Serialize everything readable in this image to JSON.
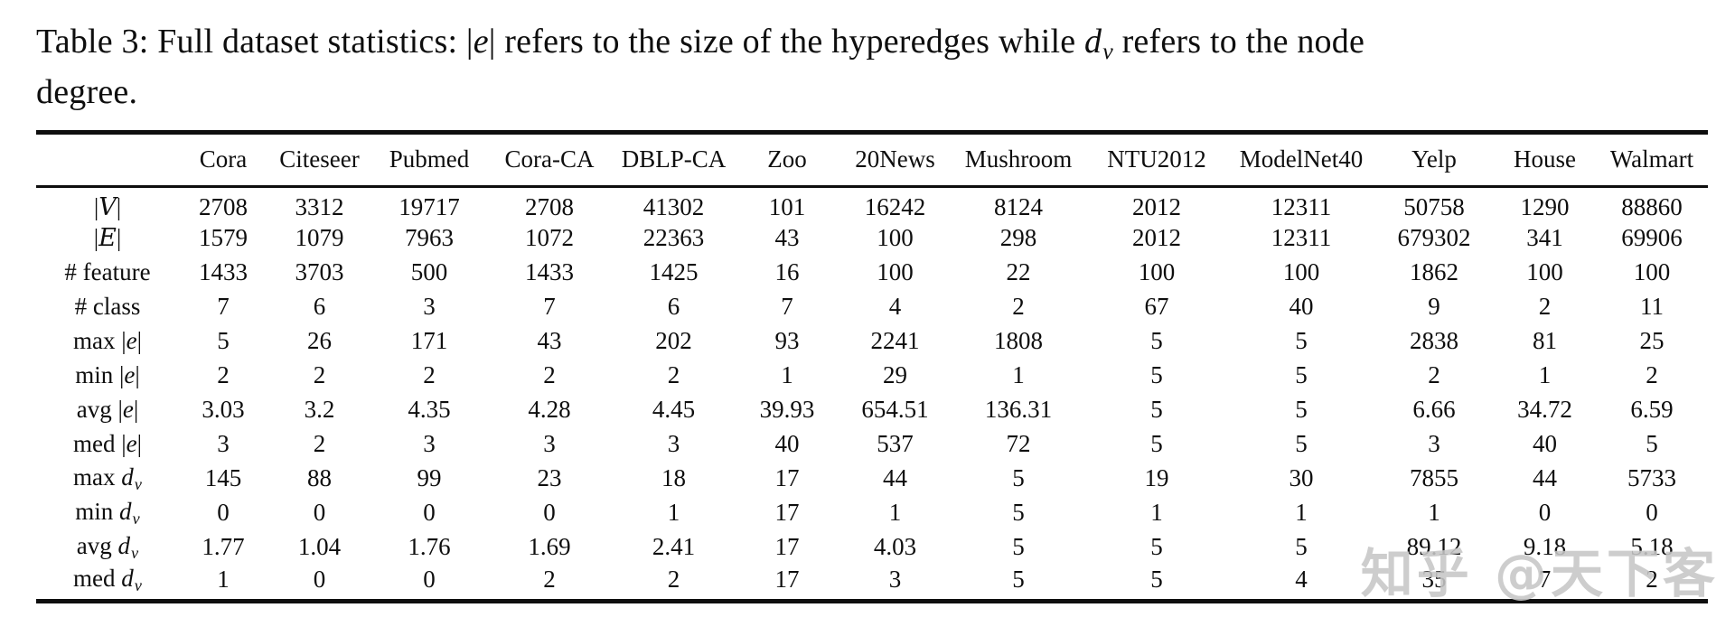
{
  "caption": {
    "part1": "Table 3: Full dataset statistics: ",
    "math_e_bar_left": "|",
    "math_e": "e",
    "math_e_bar_right": "|",
    "part2": " refers to the size of the hyperedges while ",
    "math_d": "d",
    "math_d_sub": "v",
    "part3": " refers to the node degree."
  },
  "watermark": "知乎 @天下客",
  "table": {
    "columns": [
      "Cora",
      "Citeseer",
      "Pubmed",
      "Cora-CA",
      "DBLP-CA",
      "Zoo",
      "20News",
      "Mushroom",
      "NTU2012",
      "ModelNet40",
      "Yelp",
      "House",
      "Walmart"
    ],
    "rows": [
      {
        "label": "|V|",
        "values": [
          "2708",
          "3312",
          "19717",
          "2708",
          "41302",
          "101",
          "16242",
          "8124",
          "2012",
          "12311",
          "50758",
          "1290",
          "88860"
        ]
      },
      {
        "label": "|E|",
        "values": [
          "1579",
          "1079",
          "7963",
          "1072",
          "22363",
          "43",
          "100",
          "298",
          "2012",
          "12311",
          "679302",
          "341",
          "69906"
        ]
      },
      {
        "label": "# feature",
        "values": [
          "1433",
          "3703",
          "500",
          "1433",
          "1425",
          "16",
          "100",
          "22",
          "100",
          "100",
          "1862",
          "100",
          "100"
        ]
      },
      {
        "label": "# class",
        "values": [
          "7",
          "6",
          "3",
          "7",
          "6",
          "7",
          "4",
          "2",
          "67",
          "40",
          "9",
          "2",
          "11"
        ]
      },
      {
        "label": "max |e|",
        "values": [
          "5",
          "26",
          "171",
          "43",
          "202",
          "93",
          "2241",
          "1808",
          "5",
          "5",
          "2838",
          "81",
          "25"
        ]
      },
      {
        "label": "min |e|",
        "values": [
          "2",
          "2",
          "2",
          "2",
          "2",
          "1",
          "29",
          "1",
          "5",
          "5",
          "2",
          "1",
          "2"
        ]
      },
      {
        "label": "avg |e|",
        "values": [
          "3.03",
          "3.2",
          "4.35",
          "4.28",
          "4.45",
          "39.93",
          "654.51",
          "136.31",
          "5",
          "5",
          "6.66",
          "34.72",
          "6.59"
        ]
      },
      {
        "label": "med |e|",
        "values": [
          "3",
          "2",
          "3",
          "3",
          "3",
          "40",
          "537",
          "72",
          "5",
          "5",
          "3",
          "40",
          "5"
        ]
      },
      {
        "label": "max d_v",
        "values": [
          "145",
          "88",
          "99",
          "23",
          "18",
          "17",
          "44",
          "5",
          "19",
          "30",
          "7855",
          "44",
          "5733"
        ]
      },
      {
        "label": "min d_v",
        "values": [
          "0",
          "0",
          "0",
          "0",
          "1",
          "17",
          "1",
          "5",
          "1",
          "1",
          "1",
          "0",
          "0"
        ]
      },
      {
        "label": "avg d_v",
        "values": [
          "1.77",
          "1.04",
          "1.76",
          "1.69",
          "2.41",
          "17",
          "4.03",
          "5",
          "5",
          "5",
          "89.12",
          "9.18",
          "5.18"
        ]
      },
      {
        "label": "med d_v",
        "values": [
          "1",
          "0",
          "0",
          "2",
          "2",
          "17",
          "3",
          "5",
          "5",
          "4",
          "35",
          "7",
          "2"
        ]
      }
    ]
  }
}
